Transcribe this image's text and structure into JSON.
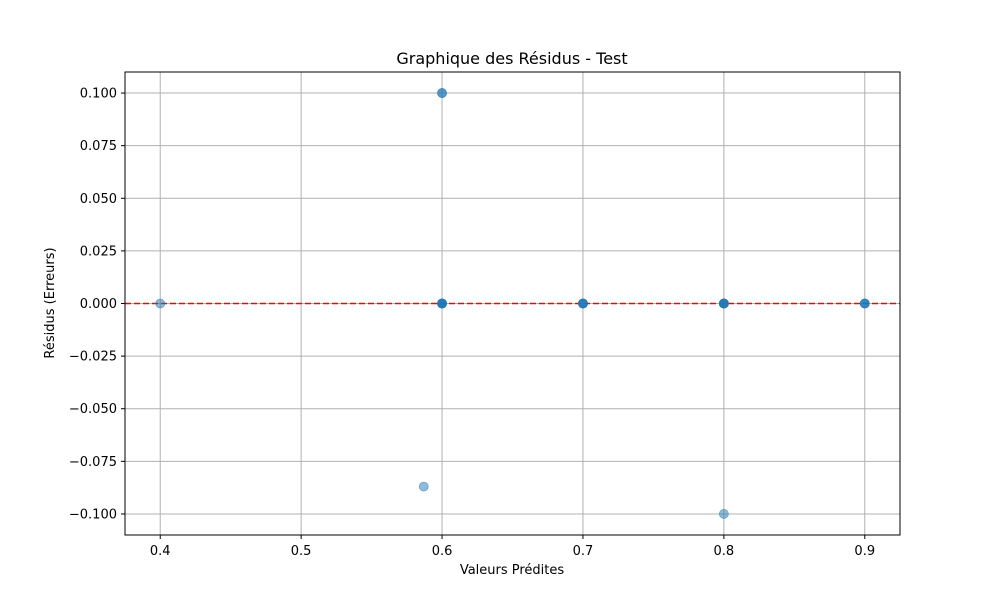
{
  "chart_data": {
    "type": "scatter",
    "title": "Graphique des Résidus - Test",
    "xlabel": "Valeurs Prédites",
    "ylabel": "Résidus (Erreurs)",
    "xlim": [
      0.375,
      0.925
    ],
    "ylim": [
      -0.11,
      0.11
    ],
    "xticks": [
      0.4,
      0.5,
      0.6,
      0.7,
      0.8,
      0.9
    ],
    "xtick_labels": [
      "0.4",
      "0.5",
      "0.6",
      "0.7",
      "0.8",
      "0.9"
    ],
    "yticks": [
      0.1,
      0.075,
      0.05,
      0.025,
      0.0,
      -0.025,
      -0.05,
      -0.075,
      -0.1
    ],
    "ytick_labels": [
      "0.100",
      "0.075",
      "0.050",
      "0.025",
      "0.000",
      "−0.025",
      "−0.050",
      "−0.075",
      "−0.100"
    ],
    "grid": true,
    "reference_line": {
      "y": 0,
      "color": "#ff0000",
      "style": "dashed"
    },
    "series": [
      {
        "color": "#1f77b4",
        "x": [
          0.4,
          0.6,
          0.6,
          0.6,
          0.6,
          0.6,
          0.7,
          0.7,
          0.7,
          0.7,
          0.8,
          0.8,
          0.8,
          0.8,
          0.8,
          0.9,
          0.9,
          0.9,
          0.6,
          0.6,
          0.587,
          0.8
        ],
        "y": [
          0.0,
          0.0,
          0.0,
          0.0,
          0.0,
          0.0,
          0.0,
          0.0,
          0.0,
          0.0,
          0.0,
          0.0,
          0.0,
          0.0,
          0.0,
          0.0,
          0.0,
          0.0,
          0.1,
          0.1,
          -0.087,
          -0.1
        ]
      }
    ]
  }
}
